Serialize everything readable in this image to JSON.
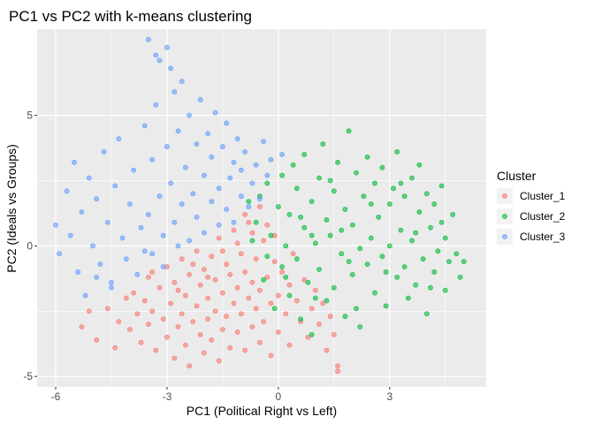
{
  "chart_data": {
    "type": "scatter",
    "title": "PC1 vs PC2 with k-means clustering",
    "xlabel": "PC1 (Political Right vs Left)",
    "ylabel": "PC2 (Ideals vs Groups)",
    "xlim": [
      -6.5,
      5.6
    ],
    "ylim": [
      -5.4,
      8.3
    ],
    "xticks": [
      -6,
      -3,
      0,
      3
    ],
    "yticks": [
      -5,
      0,
      5
    ],
    "grid": true,
    "legend": {
      "title": "Cluster",
      "placement": "right"
    },
    "series": [
      {
        "name": "Cluster_1",
        "color": "#F8766D",
        "points": [
          [
            -5.3,
            -3.1
          ],
          [
            -5.1,
            -2.5
          ],
          [
            -4.9,
            -3.6
          ],
          [
            -4.6,
            -2.4
          ],
          [
            -4.4,
            -3.9
          ],
          [
            -4.3,
            -2.9
          ],
          [
            -4.1,
            -2.0
          ],
          [
            -4.0,
            -3.2
          ],
          [
            -3.9,
            -1.8
          ],
          [
            -3.8,
            -2.6
          ],
          [
            -3.7,
            -3.7
          ],
          [
            -3.6,
            -2.1
          ],
          [
            -3.5,
            -1.2
          ],
          [
            -3.5,
            -3.0
          ],
          [
            -3.4,
            -2.5
          ],
          [
            -3.3,
            -4.0
          ],
          [
            -3.2,
            -1.6
          ],
          [
            -3.1,
            -2.8
          ],
          [
            -3.0,
            -0.8
          ],
          [
            -3.0,
            -3.5
          ],
          [
            -2.9,
            -2.2
          ],
          [
            -2.8,
            -1.4
          ],
          [
            -2.8,
            -4.3
          ],
          [
            -2.7,
            -3.1
          ],
          [
            -2.6,
            -0.5
          ],
          [
            -2.6,
            -2.6
          ],
          [
            -2.5,
            -1.9
          ],
          [
            -2.5,
            -3.8
          ],
          [
            -2.4,
            -1.1
          ],
          [
            -2.4,
            -4.6
          ],
          [
            -2.3,
            -2.9
          ],
          [
            -2.2,
            -0.2
          ],
          [
            -2.2,
            -2.3
          ],
          [
            -2.1,
            -1.5
          ],
          [
            -2.1,
            -3.4
          ],
          [
            -2.0,
            -0.9
          ],
          [
            -2.0,
            -4.1
          ],
          [
            -1.9,
            -2.0
          ],
          [
            -1.9,
            -2.8
          ],
          [
            -1.8,
            -0.4
          ],
          [
            -1.8,
            -3.6
          ],
          [
            -1.7,
            -1.3
          ],
          [
            -1.7,
            -2.5
          ],
          [
            -1.6,
            0.3
          ],
          [
            -1.6,
            -4.4
          ],
          [
            -1.5,
            -1.8
          ],
          [
            -1.5,
            -3.2
          ],
          [
            -1.4,
            -0.7
          ],
          [
            -1.4,
            -2.7
          ],
          [
            -1.3,
            -1.1
          ],
          [
            -1.3,
            -3.9
          ],
          [
            -1.2,
            0.6
          ],
          [
            -1.2,
            -2.2
          ],
          [
            -1.1,
            -1.6
          ],
          [
            -1.1,
            -3.3
          ],
          [
            -1.0,
            -0.3
          ],
          [
            -1.0,
            -2.6
          ],
          [
            -0.9,
            -1.0
          ],
          [
            -0.9,
            -4.0
          ],
          [
            -0.8,
            0.9
          ],
          [
            -0.8,
            -2.0
          ],
          [
            -0.7,
            -1.4
          ],
          [
            -0.7,
            -3.1
          ],
          [
            -0.6,
            -0.5
          ],
          [
            -0.6,
            -2.4
          ],
          [
            -0.5,
            -1.7
          ],
          [
            -0.5,
            -3.7
          ],
          [
            -0.4,
            0.2
          ],
          [
            -0.4,
            -2.9
          ],
          [
            -0.3,
            -1.2
          ],
          [
            -0.2,
            -2.2
          ],
          [
            -0.2,
            -4.2
          ],
          [
            -0.1,
            -0.6
          ],
          [
            0.0,
            -1.9
          ],
          [
            0.0,
            -3.3
          ],
          [
            0.1,
            -1.0
          ],
          [
            0.2,
            -2.6
          ],
          [
            0.3,
            -1.5
          ],
          [
            0.3,
            -3.8
          ],
          [
            0.4,
            -0.3
          ],
          [
            0.5,
            -2.1
          ],
          [
            0.6,
            -2.9
          ],
          [
            0.7,
            -1.3
          ],
          [
            0.8,
            -3.5
          ],
          [
            0.9,
            -2.4
          ],
          [
            1.0,
            -1.7
          ],
          [
            1.1,
            -3.0
          ],
          [
            1.2,
            -2.2
          ],
          [
            1.3,
            -4.0
          ],
          [
            1.4,
            -2.7
          ],
          [
            1.5,
            -3.4
          ],
          [
            1.6,
            -4.6
          ],
          [
            1.6,
            -4.8
          ],
          [
            -3.4,
            -1.0
          ],
          [
            -2.7,
            -1.7
          ],
          [
            -2.3,
            -0.7
          ],
          [
            -1.9,
            -1.2
          ],
          [
            -1.5,
            -0.2
          ],
          [
            -1.1,
            0.1
          ],
          [
            -0.7,
            0.5
          ],
          [
            -0.3,
            0.8
          ],
          [
            -0.9,
            1.2
          ],
          [
            -0.5,
            1.5
          ],
          [
            -0.1,
            0.4
          ]
        ]
      },
      {
        "name": "Cluster_2",
        "color": "#00BA38",
        "points": [
          [
            -0.8,
            1.7
          ],
          [
            -0.6,
            0.9
          ],
          [
            -0.5,
            1.9
          ],
          [
            -0.4,
            -1.3
          ],
          [
            -0.3,
            2.4
          ],
          [
            -0.2,
            0.4
          ],
          [
            -0.1,
            -2.4
          ],
          [
            0.0,
            1.5
          ],
          [
            0.1,
            -0.8
          ],
          [
            0.1,
            2.7
          ],
          [
            0.2,
            0.0
          ],
          [
            0.3,
            -1.9
          ],
          [
            0.3,
            1.2
          ],
          [
            0.4,
            3.1
          ],
          [
            0.5,
            -0.5
          ],
          [
            0.5,
            2.2
          ],
          [
            0.6,
            -2.8
          ],
          [
            0.7,
            0.7
          ],
          [
            0.7,
            3.5
          ],
          [
            0.8,
            -1.4
          ],
          [
            0.9,
            1.7
          ],
          [
            0.9,
            -3.4
          ],
          [
            1.0,
            0.1
          ],
          [
            1.1,
            2.6
          ],
          [
            1.1,
            -0.9
          ],
          [
            1.2,
            3.9
          ],
          [
            1.3,
            -2.1
          ],
          [
            1.3,
            1.0
          ],
          [
            1.4,
            0.4
          ],
          [
            1.5,
            2.1
          ],
          [
            1.5,
            -1.6
          ],
          [
            1.6,
            3.2
          ],
          [
            1.7,
            -0.3
          ],
          [
            1.8,
            1.4
          ],
          [
            1.8,
            -2.7
          ],
          [
            1.9,
            4.4
          ],
          [
            2.0,
            0.8
          ],
          [
            2.0,
            -1.1
          ],
          [
            2.1,
            2.8
          ],
          [
            2.2,
            -0.1
          ],
          [
            2.2,
            -3.1
          ],
          [
            2.3,
            1.9
          ],
          [
            2.4,
            -0.7
          ],
          [
            2.4,
            3.4
          ],
          [
            2.5,
            0.3
          ],
          [
            2.6,
            -1.8
          ],
          [
            2.6,
            2.4
          ],
          [
            2.7,
            1.1
          ],
          [
            2.8,
            -0.4
          ],
          [
            2.8,
            3.0
          ],
          [
            2.9,
            -2.3
          ],
          [
            3.0,
            1.6
          ],
          [
            3.0,
            0.0
          ],
          [
            3.1,
            2.2
          ],
          [
            3.2,
            -1.2
          ],
          [
            3.2,
            3.6
          ],
          [
            3.3,
            0.6
          ],
          [
            3.4,
            -0.8
          ],
          [
            3.4,
            1.9
          ],
          [
            3.5,
            -2.0
          ],
          [
            3.6,
            2.6
          ],
          [
            3.6,
            0.2
          ],
          [
            3.7,
            -1.5
          ],
          [
            3.8,
            1.3
          ],
          [
            3.8,
            3.1
          ],
          [
            3.9,
            -0.5
          ],
          [
            4.0,
            2.0
          ],
          [
            4.0,
            -2.6
          ],
          [
            4.1,
            0.7
          ],
          [
            4.2,
            -1.0
          ],
          [
            4.2,
            1.6
          ],
          [
            4.3,
            -0.2
          ],
          [
            4.4,
            0.9
          ],
          [
            4.5,
            -1.7
          ],
          [
            4.5,
            0.3
          ],
          [
            4.6,
            -0.6
          ],
          [
            4.7,
            1.2
          ],
          [
            4.8,
            -0.3
          ],
          [
            4.9,
            -1.2
          ],
          [
            5.0,
            -0.6
          ],
          [
            -0.7,
            0.2
          ],
          [
            -0.3,
            -0.4
          ],
          [
            0.2,
            -1.2
          ],
          [
            0.6,
            1.1
          ],
          [
            1.0,
            -2.0
          ],
          [
            1.4,
            2.5
          ],
          [
            1.7,
            0.6
          ],
          [
            2.1,
            -2.4
          ],
          [
            2.5,
            1.6
          ],
          [
            2.9,
            -1.0
          ],
          [
            3.3,
            2.4
          ],
          [
            3.7,
            0.5
          ],
          [
            4.1,
            -1.6
          ],
          [
            4.4,
            2.3
          ],
          [
            0.9,
            0.4
          ],
          [
            1.9,
            -0.6
          ]
        ]
      },
      {
        "name": "Cluster_3",
        "color": "#619CFF",
        "points": [
          [
            -6.0,
            0.8
          ],
          [
            -5.9,
            -0.3
          ],
          [
            -5.7,
            2.1
          ],
          [
            -5.6,
            0.4
          ],
          [
            -5.5,
            3.2
          ],
          [
            -5.4,
            -1.0
          ],
          [
            -5.3,
            1.3
          ],
          [
            -5.2,
            -1.9
          ],
          [
            -5.1,
            2.6
          ],
          [
            -5.0,
            0.0
          ],
          [
            -4.9,
            1.8
          ],
          [
            -4.8,
            -0.7
          ],
          [
            -4.7,
            3.6
          ],
          [
            -4.6,
            0.9
          ],
          [
            -4.5,
            -1.4
          ],
          [
            -4.4,
            2.3
          ],
          [
            -4.3,
            4.1
          ],
          [
            -4.2,
            0.3
          ],
          [
            -4.1,
            -0.5
          ],
          [
            -4.0,
            1.6
          ],
          [
            -3.9,
            2.9
          ],
          [
            -3.8,
            -1.1
          ],
          [
            -3.7,
            0.7
          ],
          [
            -3.6,
            4.6
          ],
          [
            -3.5,
            1.2
          ],
          [
            -3.4,
            3.3
          ],
          [
            -3.4,
            -0.3
          ],
          [
            -3.3,
            5.4
          ],
          [
            -3.2,
            1.9
          ],
          [
            -3.2,
            7.1
          ],
          [
            -3.1,
            0.4
          ],
          [
            -3.0,
            3.8
          ],
          [
            -3.0,
            7.6
          ],
          [
            -2.9,
            2.4
          ],
          [
            -2.8,
            5.9
          ],
          [
            -2.8,
            0.9
          ],
          [
            -2.7,
            4.4
          ],
          [
            -2.6,
            1.6
          ],
          [
            -2.6,
            6.3
          ],
          [
            -2.5,
            3.0
          ],
          [
            -2.4,
            0.2
          ],
          [
            -2.4,
            5.0
          ],
          [
            -2.3,
            2.0
          ],
          [
            -2.2,
            3.9
          ],
          [
            -2.2,
            1.1
          ],
          [
            -2.1,
            5.6
          ],
          [
            -2.0,
            2.7
          ],
          [
            -2.0,
            0.5
          ],
          [
            -1.9,
            4.3
          ],
          [
            -1.8,
            1.7
          ],
          [
            -1.8,
            3.4
          ],
          [
            -1.7,
            5.1
          ],
          [
            -1.6,
            2.2
          ],
          [
            -1.6,
            0.8
          ],
          [
            -1.5,
            3.8
          ],
          [
            -1.4,
            1.4
          ],
          [
            -1.4,
            4.7
          ],
          [
            -1.3,
            2.6
          ],
          [
            -1.2,
            3.2
          ],
          [
            -1.2,
            0.9
          ],
          [
            -1.1,
            4.1
          ],
          [
            -1.0,
            1.9
          ],
          [
            -1.0,
            2.9
          ],
          [
            -0.9,
            3.6
          ],
          [
            -0.8,
            1.5
          ],
          [
            -0.7,
            2.4
          ],
          [
            -0.6,
            3.1
          ],
          [
            -0.5,
            1.8
          ],
          [
            -0.4,
            4.0
          ],
          [
            -0.3,
            2.7
          ],
          [
            -0.2,
            3.3
          ],
          [
            0.1,
            3.5
          ],
          [
            -3.3,
            7.3
          ],
          [
            -3.5,
            7.9
          ],
          [
            -2.9,
            6.8
          ],
          [
            -4.9,
            -1.2
          ],
          [
            -4.5,
            -1.6
          ],
          [
            -3.1,
            -0.8
          ],
          [
            -3.6,
            -0.2
          ],
          [
            -2.7,
            0.0
          ]
        ]
      }
    ]
  }
}
